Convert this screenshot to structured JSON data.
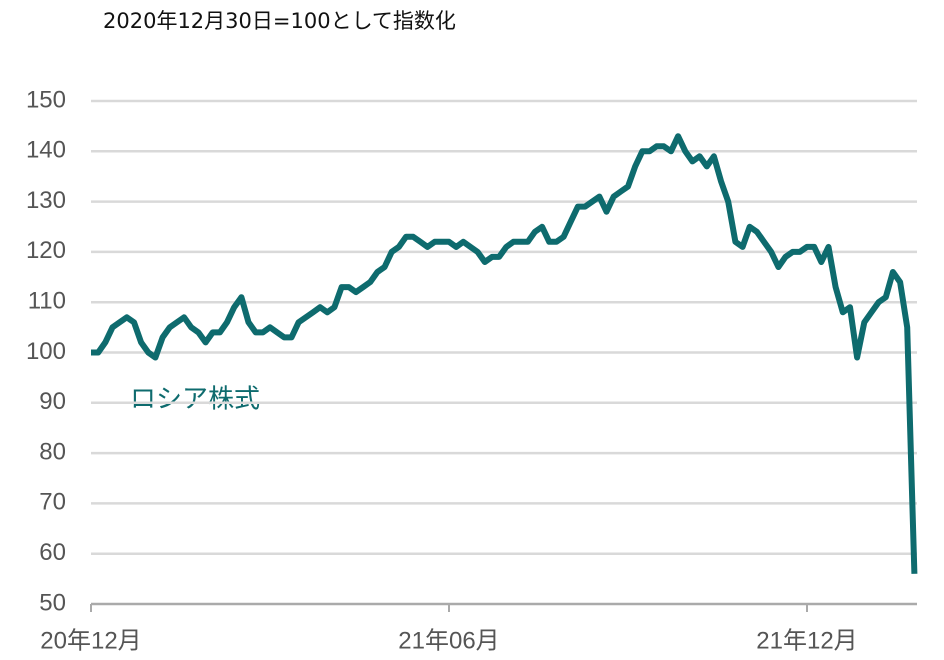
{
  "chart_data": {
    "type": "line",
    "subtitle": "2020年12月30日=100として指数化",
    "categories": [
      "20年12月",
      null,
      null,
      null,
      null,
      null,
      null,
      null,
      null,
      null,
      null,
      null,
      null,
      null,
      null,
      null,
      null,
      null,
      null,
      null,
      null,
      null,
      null,
      null,
      null,
      null,
      null,
      null,
      null,
      null,
      null,
      null,
      null,
      null,
      null,
      null,
      null,
      null,
      null,
      null,
      null,
      null,
      null,
      null,
      null,
      null,
      null,
      null,
      null,
      null,
      "21年06月",
      null,
      null,
      null,
      null,
      null,
      null,
      null,
      null,
      null,
      null,
      null,
      null,
      null,
      null,
      null,
      null,
      null,
      null,
      null,
      null,
      null,
      null,
      null,
      null,
      null,
      null,
      null,
      null,
      null,
      null,
      null,
      null,
      null,
      null,
      null,
      null,
      null,
      null,
      null,
      null,
      null,
      null,
      null,
      null,
      null,
      null,
      null,
      null,
      null,
      "21年12月",
      null,
      null,
      null,
      null,
      null,
      null,
      null,
      null,
      null,
      null,
      null,
      null,
      null,
      null,
      null
    ],
    "series": [
      {
        "name": "ロシア株式",
        "color": "#0e6b6e",
        "values": [
          100,
          100,
          102,
          105,
          106,
          107,
          106,
          102,
          100,
          99,
          103,
          105,
          106,
          107,
          105,
          104,
          102,
          104,
          104,
          106,
          109,
          111,
          106,
          104,
          104,
          105,
          104,
          103,
          103,
          106,
          107,
          108,
          109,
          108,
          109,
          113,
          113,
          112,
          113,
          114,
          116,
          117,
          120,
          121,
          123,
          123,
          122,
          121,
          122,
          122,
          122,
          121,
          122,
          121,
          120,
          118,
          119,
          119,
          121,
          122,
          122,
          122,
          124,
          125,
          122,
          122,
          123,
          126,
          129,
          129,
          130,
          131,
          128,
          131,
          132,
          133,
          137,
          140,
          140,
          141,
          141,
          140,
          143,
          140,
          138,
          139,
          137,
          139,
          134,
          130,
          122,
          121,
          125,
          124,
          122,
          120,
          117,
          119,
          120,
          120,
          121,
          121,
          118,
          121,
          113,
          108,
          109,
          99,
          106,
          108,
          110,
          111,
          116,
          114,
          105,
          56
        ]
      }
    ],
    "ylim": [
      50,
      150
    ],
    "yticks": [
      50,
      60,
      70,
      80,
      90,
      100,
      110,
      120,
      130,
      140,
      150
    ],
    "grid": true
  }
}
